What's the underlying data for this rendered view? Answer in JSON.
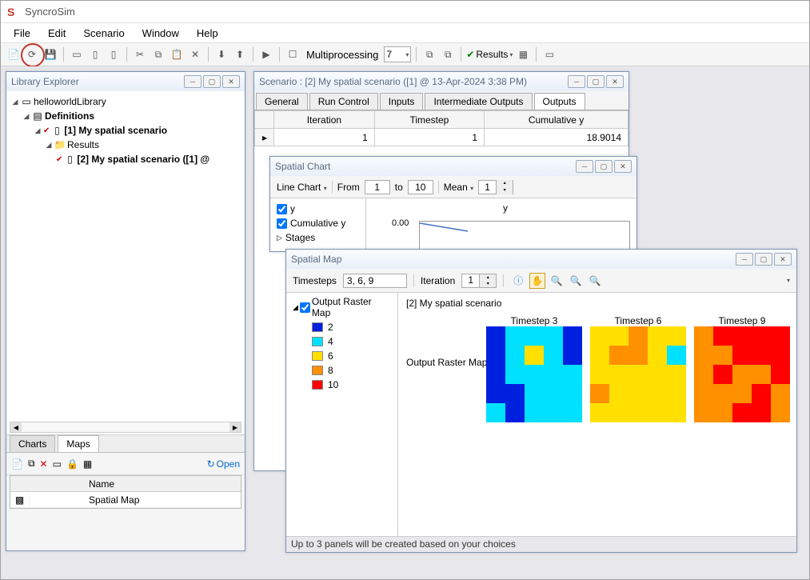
{
  "app": {
    "title": "SyncroSim"
  },
  "menu": [
    "File",
    "Edit",
    "Scenario",
    "Window",
    "Help"
  ],
  "toolbar": {
    "multiprocessing": "Multiprocessing",
    "mp_count": "7",
    "results": "Results"
  },
  "explorer": {
    "title": "Library Explorer",
    "root": "helloworldLibrary",
    "definitions": "Definitions",
    "scenario1": "[1] My spatial scenario",
    "results": "Results",
    "scenario2": "[2] My spatial scenario ([1] @",
    "charts_tab": "Charts",
    "maps_tab": "Maps",
    "open": "Open",
    "name_col": "Name",
    "row_name": "Spatial Map"
  },
  "scenario_win": {
    "title": "Scenario : [2] My spatial scenario ([1] @ 13-Apr-2024 3:38 PM)",
    "tabs": [
      "General",
      "Run Control",
      "Inputs",
      "Intermediate Outputs",
      "Outputs"
    ],
    "headers": [
      "Iteration",
      "Timestep",
      "Cumulative y"
    ],
    "row": [
      "1",
      "1",
      "18.9014"
    ]
  },
  "chart_win": {
    "title": "Spatial Chart",
    "line_chart": "Line Chart",
    "from": "From",
    "from_v": "1",
    "to": "to",
    "to_v": "10",
    "mean": "Mean",
    "mean_v": "1",
    "y": "y",
    "cum_y": "Cumulative y",
    "stages": "Stages",
    "ylabel": "0.00"
  },
  "map_win": {
    "title": "Spatial Map",
    "timesteps_l": "Timesteps",
    "timesteps_v": "3, 6, 9",
    "iteration_l": "Iteration",
    "iteration_v": "1",
    "legend_title": "Output Raster Map",
    "legend": [
      {
        "v": "2",
        "c": "#0020e0"
      },
      {
        "v": "4",
        "c": "#00e0ff"
      },
      {
        "v": "6",
        "c": "#ffe000"
      },
      {
        "v": "8",
        "c": "#ff9000"
      },
      {
        "v": "10",
        "c": "#ff0000"
      }
    ],
    "scenario_name": "[2] My spatial scenario",
    "row_label": "Output Raster Map",
    "ts_labels": [
      "Timestep 3",
      "Timestep 6",
      "Timestep 9"
    ],
    "raster_colors": {
      "2": "#0020e0",
      "4": "#00e0ff",
      "6": "#ffe000",
      "8": "#ff9000",
      "10": "#ff0000"
    },
    "rasters": [
      [
        [
          2,
          4,
          4,
          4,
          2
        ],
        [
          2,
          4,
          6,
          4,
          2
        ],
        [
          2,
          4,
          4,
          4,
          4
        ],
        [
          2,
          2,
          4,
          4,
          4
        ],
        [
          4,
          2,
          4,
          4,
          4
        ]
      ],
      [
        [
          6,
          6,
          8,
          6,
          6
        ],
        [
          6,
          8,
          8,
          6,
          4
        ],
        [
          6,
          6,
          6,
          6,
          6
        ],
        [
          8,
          6,
          6,
          6,
          6
        ],
        [
          6,
          6,
          6,
          6,
          6
        ]
      ],
      [
        [
          8,
          10,
          10,
          10,
          10
        ],
        [
          8,
          8,
          10,
          10,
          10
        ],
        [
          8,
          10,
          8,
          8,
          10
        ],
        [
          8,
          8,
          8,
          10,
          8
        ],
        [
          8,
          8,
          10,
          10,
          8
        ]
      ]
    ],
    "footer": "Up to 3 panels will be created based on your choices"
  }
}
